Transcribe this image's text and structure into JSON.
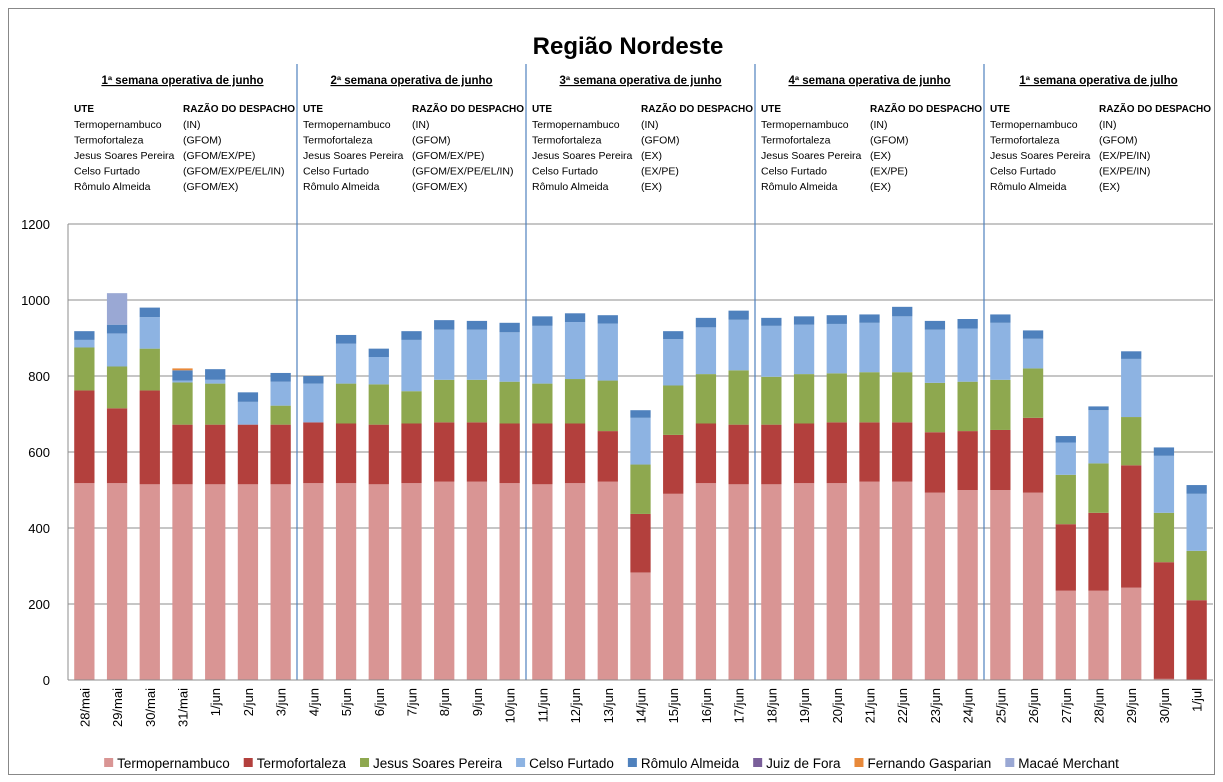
{
  "chart_data": {
    "type": "bar",
    "stacked": true,
    "title": "Região Nordeste",
    "categories": [
      "28/mai",
      "29/mai",
      "30/mai",
      "31/mai",
      "1/jun",
      "2/jun",
      "3/jun",
      "4/jun",
      "5/jun",
      "6/jun",
      "7/jun",
      "8/jun",
      "9/jun",
      "10/jun",
      "11/jun",
      "12/jun",
      "13/jun",
      "14/jun",
      "15/jun",
      "16/jun",
      "17/jun",
      "18/jun",
      "19/jun",
      "20/jun",
      "21/jun",
      "22/jun",
      "23/jun",
      "24/jun",
      "25/jun",
      "26/jun",
      "27/jun",
      "28/jun",
      "29/jun",
      "30/jun",
      "1/jul"
    ],
    "series": [
      {
        "name": "Termopernambuco",
        "color": "#d99594",
        "values": [
          518,
          518,
          515,
          515,
          515,
          515,
          515,
          518,
          518,
          515,
          518,
          522,
          522,
          518,
          515,
          518,
          522,
          283,
          490,
          518,
          515,
          515,
          518,
          518,
          522,
          522,
          493,
          500,
          500,
          493,
          235,
          235,
          243,
          3,
          0
        ]
      },
      {
        "name": "Termofortaleza",
        "color": "#b3403d",
        "values": [
          244,
          197,
          247,
          157,
          157,
          157,
          157,
          160,
          157,
          157,
          157,
          156,
          156,
          157,
          160,
          157,
          133,
          154,
          155,
          157,
          157,
          157,
          157,
          160,
          156,
          156,
          159,
          155,
          158,
          197,
          175,
          205,
          322,
          307,
          210
        ]
      },
      {
        "name": "Jesus Soares Pereira",
        "color": "#8ea84f",
        "values": [
          113,
          110,
          110,
          111,
          108,
          0,
          50,
          0,
          105,
          106,
          85,
          112,
          112,
          110,
          105,
          117,
          133,
          130,
          130,
          130,
          143,
          126,
          130,
          129,
          132,
          132,
          130,
          130,
          132,
          130,
          130,
          130,
          127,
          130,
          130
        ]
      },
      {
        "name": "Celso Furtado",
        "color": "#8db3e2",
        "values": [
          20,
          87,
          83,
          5,
          10,
          60,
          63,
          102,
          105,
          72,
          135,
          132,
          132,
          130,
          152,
          150,
          150,
          123,
          122,
          123,
          133,
          134,
          130,
          130,
          130,
          147,
          140,
          140,
          150,
          78,
          85,
          140,
          153,
          150,
          150
        ]
      },
      {
        "name": "Rômulo Almeida",
        "color": "#4f81bd",
        "values": [
          23,
          23,
          25,
          27,
          28,
          25,
          23,
          20,
          23,
          22,
          23,
          25,
          23,
          25,
          25,
          23,
          22,
          20,
          21,
          25,
          24,
          21,
          22,
          23,
          22,
          25,
          23,
          25,
          22,
          22,
          17,
          10,
          20,
          22,
          23
        ]
      },
      {
        "name": "Juiz de Fora",
        "color": "#7a5f9a",
        "values": [
          0,
          0,
          0,
          0,
          0,
          0,
          0,
          0,
          0,
          0,
          0,
          0,
          0,
          0,
          0,
          0,
          0,
          0,
          0,
          0,
          0,
          0,
          0,
          0,
          0,
          0,
          0,
          0,
          0,
          0,
          0,
          0,
          0,
          0,
          0
        ]
      },
      {
        "name": "Fernando Gasparian",
        "color": "#e8893a",
        "values": [
          0,
          0,
          0,
          5,
          0,
          0,
          0,
          0,
          0,
          0,
          0,
          0,
          0,
          0,
          0,
          0,
          0,
          0,
          0,
          0,
          0,
          0,
          0,
          0,
          0,
          0,
          0,
          0,
          0,
          0,
          0,
          0,
          0,
          0,
          0
        ]
      },
      {
        "name": "Macaé Merchant",
        "color": "#9aa8d4",
        "values": [
          0,
          83,
          0,
          0,
          0,
          0,
          0,
          0,
          0,
          0,
          0,
          0,
          0,
          0,
          0,
          0,
          0,
          0,
          0,
          0,
          0,
          0,
          0,
          0,
          0,
          0,
          0,
          0,
          0,
          0,
          0,
          0,
          0,
          0,
          0
        ]
      }
    ],
    "ylim": [
      0,
      1200
    ],
    "yticks": [
      0,
      200,
      400,
      600,
      800,
      1000,
      1200
    ],
    "grid": true,
    "legend": "bottom",
    "weeks": [
      {
        "title": "1ª semana operativa de junho",
        "headers": [
          "UTE",
          "RAZÃO DO DESPACHO"
        ],
        "rows": [
          [
            "Termopernambuco",
            "(IN)"
          ],
          [
            "Termofortaleza",
            "(GFOM)"
          ],
          [
            "Jesus Soares Pereira",
            "(GFOM/EX/PE)"
          ],
          [
            "Celso Furtado",
            "(GFOM/EX/PE/EL/IN)"
          ],
          [
            "Rômulo Almeida",
            "(GFOM/EX)"
          ]
        ]
      },
      {
        "title": "2ª semana operativa de junho",
        "headers": [
          "UTE",
          "RAZÃO DO DESPACHO"
        ],
        "rows": [
          [
            "Termopernambuco",
            "(IN)"
          ],
          [
            "Termofortaleza",
            "(GFOM)"
          ],
          [
            "Jesus Soares Pereira",
            "(GFOM/EX/PE)"
          ],
          [
            "Celso Furtado",
            "(GFOM/EX/PE/EL/IN)"
          ],
          [
            "Rômulo Almeida",
            "(GFOM/EX)"
          ]
        ]
      },
      {
        "title": "3ª semana operativa de junho",
        "headers": [
          "UTE",
          "RAZÃO DO DESPACHO"
        ],
        "rows": [
          [
            "Termopernambuco",
            "(IN)"
          ],
          [
            "Termofortaleza",
            "(GFOM)"
          ],
          [
            "Jesus Soares Pereira",
            "(EX)"
          ],
          [
            "Celso Furtado",
            "(EX/PE)"
          ],
          [
            "Rômulo Almeida",
            "(EX)"
          ]
        ]
      },
      {
        "title": "4ª semana operativa de junho",
        "headers": [
          "UTE",
          "RAZÃO DO DESPACHO"
        ],
        "rows": [
          [
            "Termopernambuco",
            "(IN)"
          ],
          [
            "Termofortaleza",
            "(GFOM)"
          ],
          [
            "Jesus Soares Pereira",
            "(EX)"
          ],
          [
            "Celso Furtado",
            "(EX/PE)"
          ],
          [
            "Rômulo Almeida",
            "(EX)"
          ]
        ]
      },
      {
        "title": "1ª semana operativa de julho",
        "headers": [
          "UTE",
          "RAZÃO DO DESPACHO"
        ],
        "rows": [
          [
            "Termopernambuco",
            "(IN)"
          ],
          [
            "Termofortaleza",
            "(GFOM)"
          ],
          [
            "Jesus Soares Pereira",
            "(EX/PE/IN)"
          ],
          [
            "Celso Furtado",
            "(EX/PE/IN)"
          ],
          [
            "Rômulo Almeida",
            "(EX)"
          ]
        ]
      }
    ]
  }
}
